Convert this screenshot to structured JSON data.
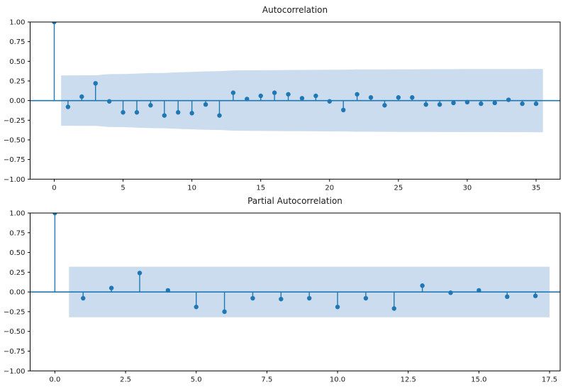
{
  "figure": {
    "background": "#ffffff",
    "accent_color": "#1f77b4",
    "band_color": "#cadcee",
    "text_color": "#1a1a1a",
    "spine_color": "#000000"
  },
  "chart_data": [
    {
      "type": "scatter",
      "style": "stem-with-confidence-band",
      "title": "Autocorrelation",
      "x": [
        0,
        1,
        2,
        3,
        4,
        5,
        6,
        7,
        8,
        9,
        10,
        11,
        12,
        13,
        14,
        15,
        16,
        17,
        18,
        19,
        20,
        21,
        22,
        23,
        24,
        25,
        26,
        27,
        28,
        29,
        30,
        31,
        32,
        33,
        34,
        35
      ],
      "values": [
        1.0,
        -0.08,
        0.05,
        0.22,
        -0.01,
        -0.15,
        -0.15,
        -0.06,
        -0.19,
        -0.15,
        -0.16,
        -0.05,
        -0.19,
        0.1,
        0.02,
        0.06,
        0.1,
        0.08,
        0.03,
        0.06,
        -0.01,
        -0.12,
        0.08,
        0.04,
        -0.06,
        0.04,
        0.04,
        -0.05,
        -0.05,
        -0.03,
        -0.02,
        -0.04,
        -0.03,
        0.01,
        -0.04,
        -0.04
      ],
      "conf_band_halfwidth": [
        0.32,
        0.321,
        0.322,
        0.337,
        0.338,
        0.344,
        0.35,
        0.352,
        0.36,
        0.366,
        0.372,
        0.374,
        0.383,
        0.385,
        0.386,
        0.387,
        0.389,
        0.39,
        0.391,
        0.392,
        0.393,
        0.396,
        0.396,
        0.397,
        0.398,
        0.398,
        0.399,
        0.4,
        0.4,
        0.401,
        0.401,
        0.401,
        0.402,
        0.402,
        0.403
      ],
      "conf_band_x_start": 0.5,
      "xlim": [
        -1.75,
        36.75
      ],
      "ylim": [
        -1.0,
        1.0
      ],
      "xticks": [
        0,
        5,
        10,
        15,
        20,
        25,
        30,
        35
      ],
      "xtick_labels": [
        "0",
        "5",
        "10",
        "15",
        "20",
        "25",
        "30",
        "35"
      ],
      "yticks": [
        1.0,
        0.75,
        0.5,
        0.25,
        0.0,
        -0.25,
        -0.5,
        -0.75,
        -1.0
      ],
      "ytick_labels": [
        "1.00",
        "0.75",
        "0.50",
        "0.25",
        "0.00",
        "−0.25",
        "−0.50",
        "−0.75",
        "−1.00"
      ],
      "grid": false,
      "legend": null
    },
    {
      "type": "scatter",
      "style": "stem-with-confidence-band",
      "title": "Partial Autocorrelation",
      "x": [
        0,
        1,
        2,
        3,
        4,
        5,
        6,
        7,
        8,
        9,
        10,
        11,
        12,
        13,
        14,
        15,
        16,
        17
      ],
      "values": [
        1.0,
        -0.08,
        0.05,
        0.24,
        0.02,
        -0.19,
        -0.25,
        -0.08,
        -0.09,
        -0.08,
        -0.19,
        -0.08,
        -0.21,
        0.08,
        -0.01,
        0.02,
        -0.06,
        -0.05
      ],
      "conf_band_halfwidth": [
        0.32,
        0.32,
        0.32,
        0.32,
        0.32,
        0.32,
        0.32,
        0.32,
        0.32,
        0.32,
        0.32,
        0.32,
        0.32,
        0.32,
        0.32,
        0.32,
        0.32
      ],
      "conf_band_x_start": 0.5,
      "xlim": [
        -0.875,
        17.875
      ],
      "ylim": [
        -1.0,
        1.0
      ],
      "xticks": [
        0,
        2.5,
        5,
        7.5,
        10,
        12.5,
        15,
        17.5
      ],
      "xtick_labels": [
        "0.0",
        "2.5",
        "5.0",
        "7.5",
        "10.0",
        "12.5",
        "15.0",
        "17.5"
      ],
      "yticks": [
        1.0,
        0.75,
        0.5,
        0.25,
        0.0,
        -0.25,
        -0.5,
        -0.75,
        -1.0
      ],
      "ytick_labels": [
        "1.00",
        "0.75",
        "0.50",
        "0.25",
        "0.00",
        "−0.25",
        "−0.50",
        "−0.75",
        "−1.00"
      ],
      "grid": false,
      "legend": null
    }
  ]
}
